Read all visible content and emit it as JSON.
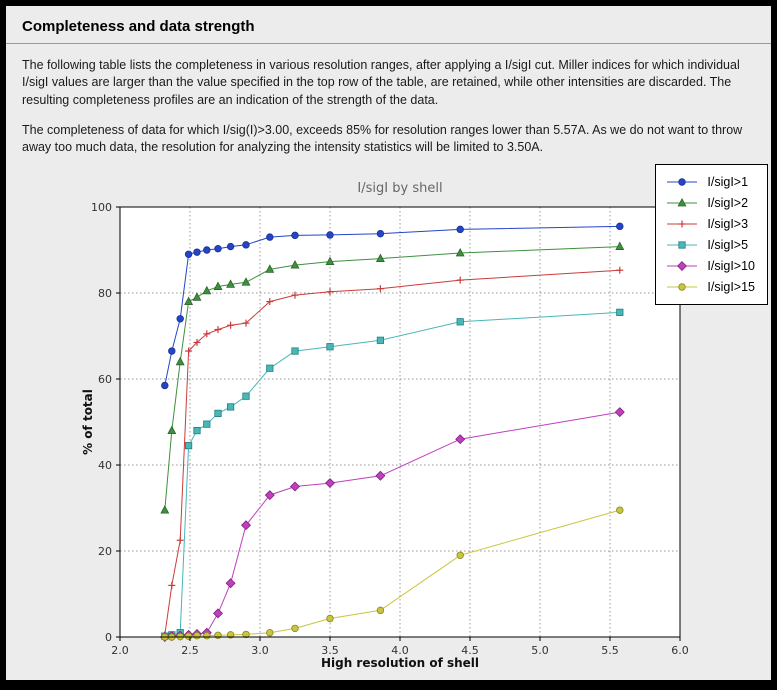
{
  "page": {
    "title": "Completeness and data strength",
    "paragraph1": "The following table lists the completeness in various resolution ranges, after applying a I/sigI cut. Miller indices for which individual I/sigI values are larger than the value specified in the top row of the table, are retained, while other intensities are discarded. The resulting completeness profiles are an indication of the strength of the data.",
    "paragraph2": "The completeness of data for which I/sig(I)>3.00, exceeds  85% for resolution ranges lower than 5.57A. As we do not want to throw away too much data, the resolution for analyzing the intensity statistics will be limited to 3.50A."
  },
  "chart_data": {
    "type": "line",
    "title": "I/sigI by shell",
    "xlabel": "High resolution of shell",
    "ylabel": "% of total",
    "xlim": [
      2.0,
      6.0
    ],
    "ylim": [
      0,
      100
    ],
    "x_ticks": [
      2.0,
      2.5,
      3.0,
      3.5,
      4.0,
      4.5,
      5.0,
      5.5,
      6.0
    ],
    "y_ticks": [
      0,
      20,
      40,
      60,
      80,
      100
    ],
    "grid": "dotted",
    "legend_position": "top-right",
    "plot_bg": "#ffffff",
    "grid_color": "#9a9a9a",
    "title_color": "#666666",
    "x": [
      2.32,
      2.37,
      2.43,
      2.49,
      2.55,
      2.62,
      2.7,
      2.79,
      2.9,
      3.07,
      3.25,
      3.5,
      3.86,
      4.43,
      5.57
    ],
    "series": [
      {
        "name": "I/sigI>1",
        "color": "#2545c8",
        "edge": "#16308f",
        "marker": "circle",
        "values": [
          58.5,
          66.5,
          74.0,
          89.0,
          89.5,
          90.0,
          90.3,
          90.8,
          91.2,
          93.0,
          93.4,
          93.5,
          93.8,
          94.8,
          95.5
        ]
      },
      {
        "name": "I/sigI>2",
        "color": "#3f8f3f",
        "edge": "#2a662a",
        "marker": "triangle",
        "values": [
          29.5,
          48.0,
          64.0,
          78.0,
          79.0,
          80.5,
          81.5,
          82.0,
          82.5,
          85.5,
          86.5,
          87.3,
          88.0,
          89.3,
          90.8
        ]
      },
      {
        "name": "I/sigI>3",
        "color": "#cc3b3b",
        "edge": "#992a2a",
        "marker": "plus",
        "values": [
          0.5,
          12.0,
          22.5,
          66.5,
          68.5,
          70.5,
          71.5,
          72.5,
          73.0,
          78.0,
          79.5,
          80.3,
          81.0,
          83.0,
          85.3
        ]
      },
      {
        "name": "I/sigI>5",
        "color": "#4ab6b6",
        "edge": "#1f8080",
        "marker": "square",
        "values": [
          0.2,
          0.5,
          1.0,
          44.5,
          48.0,
          49.5,
          52.0,
          53.5,
          56.0,
          62.5,
          66.5,
          67.5,
          69.0,
          73.3,
          75.5
        ]
      },
      {
        "name": "I/sigI>10",
        "color": "#bf3fbf",
        "edge": "#801f80",
        "marker": "diamond",
        "values": [
          0.0,
          0.2,
          0.3,
          0.5,
          0.7,
          1.0,
          5.5,
          12.5,
          26.0,
          33.0,
          35.0,
          35.8,
          37.5,
          46.0,
          52.3
        ]
      },
      {
        "name": "I/sigI>15",
        "color": "#c9c53f",
        "edge": "#8a8722",
        "marker": "circle",
        "values": [
          0.0,
          0.0,
          0.1,
          0.2,
          0.3,
          0.3,
          0.4,
          0.5,
          0.6,
          1.0,
          2.0,
          4.3,
          6.2,
          19.0,
          29.5
        ]
      }
    ]
  }
}
